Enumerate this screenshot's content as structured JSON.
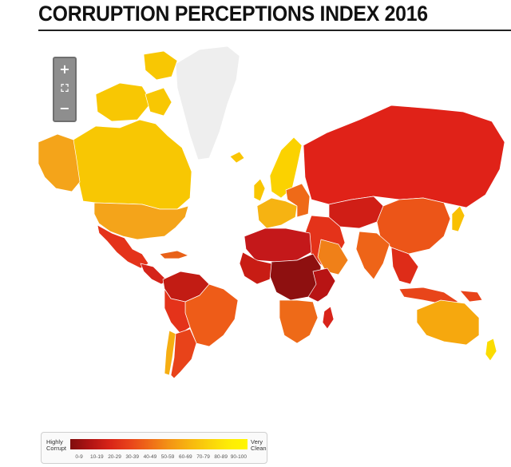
{
  "header": {
    "title": "CORRUPTION PERCEPTIONS INDEX 2016"
  },
  "zoom_controls": {
    "zoom_in": "+",
    "reset": "⛶",
    "zoom_out": "−"
  },
  "legend": {
    "low_label": "Highly Corrupt",
    "high_label": "Very Clean",
    "ranges": [
      "0-9",
      "10-19",
      "20-29",
      "30-39",
      "40-49",
      "50-59",
      "60-69",
      "70-79",
      "80-89",
      "90-100"
    ],
    "colors": [
      "#800d0d",
      "#b01414",
      "#d82418",
      "#e8431a",
      "#ef6a18",
      "#f39315",
      "#f7b410",
      "#fad10c",
      "#fdeb06",
      "#fff600"
    ],
    "no_data_color": "#eeeeee"
  }
}
